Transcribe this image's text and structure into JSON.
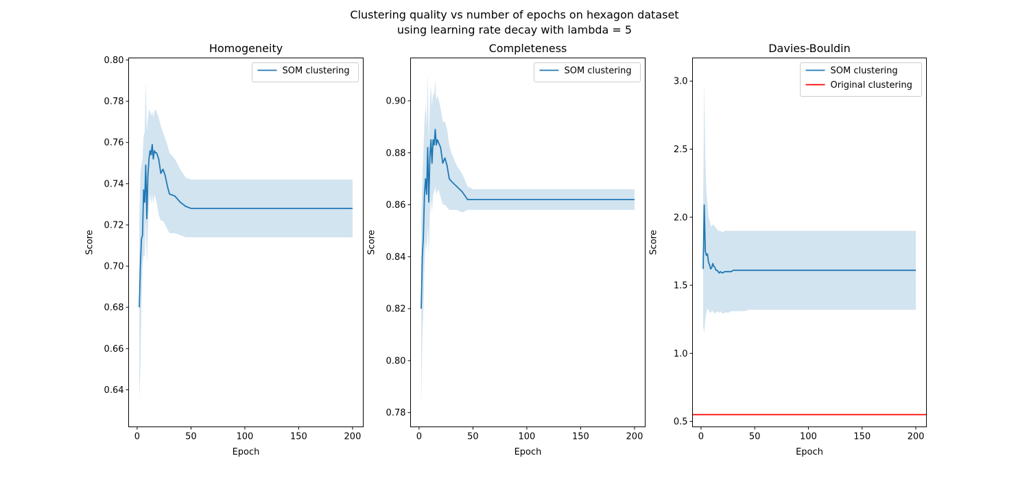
{
  "suptitle": {
    "line1": "Clustering quality vs number of epochs on hexagon dataset",
    "line2": "using learning rate decay with lambda = 5"
  },
  "colors": {
    "series": "#1f77b4",
    "band": "#1f77b4",
    "reference": "#ff0000",
    "axis": "#000000"
  },
  "chart_data": [
    {
      "type": "line",
      "title": "Homogeneity",
      "xlabel": "Epoch",
      "ylabel": "Score",
      "xlim": [
        -7.9,
        209.9
      ],
      "ylim": [
        0.622,
        0.801
      ],
      "xticks": [
        0,
        50,
        100,
        150,
        200
      ],
      "yticks": [
        0.64,
        0.66,
        0.68,
        0.7,
        0.72,
        0.74,
        0.76,
        0.78,
        0.8
      ],
      "ytick_decimals": 2,
      "legend": {
        "position": "top-right",
        "entries": [
          "SOM clustering"
        ]
      },
      "series": [
        {
          "name": "SOM clustering",
          "x": [
            2,
            3,
            4,
            5,
            6,
            7,
            8,
            9,
            10,
            11,
            12,
            13,
            14,
            15,
            16,
            17,
            18,
            20,
            22,
            24,
            26,
            28,
            30,
            35,
            40,
            45,
            50,
            60,
            80,
            100,
            150,
            200
          ],
          "y": [
            0.68,
            0.7,
            0.713,
            0.715,
            0.737,
            0.731,
            0.749,
            0.723,
            0.744,
            0.752,
            0.756,
            0.754,
            0.759,
            0.752,
            0.756,
            0.755,
            0.755,
            0.752,
            0.745,
            0.747,
            0.744,
            0.739,
            0.735,
            0.734,
            0.731,
            0.729,
            0.728,
            0.728,
            0.728,
            0.728,
            0.728,
            0.728
          ],
          "lower": [
            0.635,
            0.65,
            0.68,
            0.7,
            0.705,
            0.705,
            0.722,
            0.7,
            0.718,
            0.73,
            0.735,
            0.73,
            0.735,
            0.73,
            0.735,
            0.733,
            0.731,
            0.725,
            0.722,
            0.722,
            0.72,
            0.718,
            0.716,
            0.716,
            0.715,
            0.714,
            0.714,
            0.714,
            0.714,
            0.714,
            0.714,
            0.714
          ],
          "upper": [
            0.725,
            0.745,
            0.749,
            0.752,
            0.763,
            0.765,
            0.79,
            0.765,
            0.772,
            0.776,
            0.775,
            0.773,
            0.775,
            0.772,
            0.775,
            0.776,
            0.775,
            0.772,
            0.768,
            0.765,
            0.762,
            0.759,
            0.755,
            0.752,
            0.747,
            0.743,
            0.742,
            0.742,
            0.742,
            0.742,
            0.742,
            0.742
          ]
        }
      ]
    },
    {
      "type": "line",
      "title": "Completeness",
      "xlabel": "Epoch",
      "ylabel": "Score",
      "xlim": [
        -7.9,
        209.9
      ],
      "ylim": [
        0.7745,
        0.9165
      ],
      "xticks": [
        0,
        50,
        100,
        150,
        200
      ],
      "yticks": [
        0.78,
        0.8,
        0.82,
        0.84,
        0.86,
        0.88,
        0.9
      ],
      "ytick_decimals": 2,
      "legend": {
        "position": "top-right",
        "entries": [
          "SOM clustering"
        ]
      },
      "series": [
        {
          "name": "SOM clustering",
          "x": [
            2,
            3,
            4,
            5,
            6,
            7,
            8,
            9,
            10,
            11,
            12,
            13,
            14,
            15,
            16,
            17,
            18,
            20,
            22,
            24,
            26,
            28,
            30,
            35,
            40,
            45,
            50,
            60,
            80,
            100,
            150,
            200
          ],
          "y": [
            0.82,
            0.84,
            0.848,
            0.864,
            0.87,
            0.864,
            0.882,
            0.861,
            0.878,
            0.885,
            0.876,
            0.885,
            0.883,
            0.889,
            0.883,
            0.885,
            0.884,
            0.882,
            0.876,
            0.878,
            0.875,
            0.87,
            0.869,
            0.867,
            0.865,
            0.862,
            0.862,
            0.862,
            0.862,
            0.862,
            0.862,
            0.862
          ],
          "lower": [
            0.782,
            0.808,
            0.82,
            0.836,
            0.846,
            0.842,
            0.852,
            0.84,
            0.856,
            0.862,
            0.857,
            0.864,
            0.865,
            0.867,
            0.864,
            0.865,
            0.866,
            0.863,
            0.86,
            0.86,
            0.859,
            0.858,
            0.858,
            0.858,
            0.857,
            0.858,
            0.858,
            0.858,
            0.858,
            0.858,
            0.858,
            0.858
          ],
          "upper": [
            0.854,
            0.87,
            0.88,
            0.892,
            0.899,
            0.89,
            0.911,
            0.884,
            0.899,
            0.906,
            0.898,
            0.903,
            0.902,
            0.908,
            0.9,
            0.902,
            0.901,
            0.897,
            0.892,
            0.892,
            0.889,
            0.883,
            0.88,
            0.875,
            0.872,
            0.867,
            0.866,
            0.866,
            0.866,
            0.866,
            0.866,
            0.866
          ]
        }
      ]
    },
    {
      "type": "line",
      "title": "Davies-Bouldin",
      "xlabel": "Epoch",
      "ylabel": "Score",
      "xlim": [
        -7.9,
        209.9
      ],
      "ylim": [
        0.46,
        3.17
      ],
      "xticks": [
        0,
        50,
        100,
        150,
        200
      ],
      "yticks": [
        0.5,
        1.0,
        1.5,
        2.0,
        2.5,
        3.0
      ],
      "ytick_decimals": 1,
      "legend": {
        "position": "top-right",
        "entries": [
          "SOM clustering",
          "Original clustering"
        ]
      },
      "series": [
        {
          "name": "SOM clustering",
          "x": [
            2,
            3,
            4,
            5,
            6,
            7,
            8,
            9,
            10,
            11,
            12,
            13,
            14,
            15,
            16,
            17,
            18,
            20,
            22,
            24,
            26,
            28,
            30,
            35,
            40,
            45,
            50,
            60,
            80,
            100,
            150,
            200
          ],
          "y": [
            1.62,
            2.09,
            1.75,
            1.72,
            1.73,
            1.67,
            1.65,
            1.62,
            1.63,
            1.66,
            1.64,
            1.63,
            1.61,
            1.61,
            1.6,
            1.59,
            1.6,
            1.59,
            1.6,
            1.6,
            1.6,
            1.6,
            1.61,
            1.61,
            1.61,
            1.61,
            1.61,
            1.61,
            1.61,
            1.61,
            1.61,
            1.61
          ],
          "lower": [
            1.2,
            1.15,
            1.25,
            1.3,
            1.33,
            1.32,
            1.3,
            1.3,
            1.31,
            1.31,
            1.3,
            1.29,
            1.3,
            1.31,
            1.3,
            1.3,
            1.31,
            1.29,
            1.3,
            1.3,
            1.3,
            1.31,
            1.31,
            1.31,
            1.31,
            1.32,
            1.32,
            1.32,
            1.32,
            1.32,
            1.32,
            1.32
          ],
          "upper": [
            2.1,
            3.0,
            2.45,
            2.2,
            2.1,
            2.0,
            1.98,
            1.94,
            1.93,
            1.95,
            1.94,
            1.93,
            1.92,
            1.91,
            1.9,
            1.9,
            1.9,
            1.89,
            1.9,
            1.9,
            1.9,
            1.9,
            1.9,
            1.9,
            1.9,
            1.9,
            1.9,
            1.9,
            1.9,
            1.9,
            1.9,
            1.9
          ]
        }
      ],
      "hlines": [
        {
          "name": "Original clustering",
          "y": 0.55,
          "color": "#ff0000"
        }
      ]
    }
  ]
}
